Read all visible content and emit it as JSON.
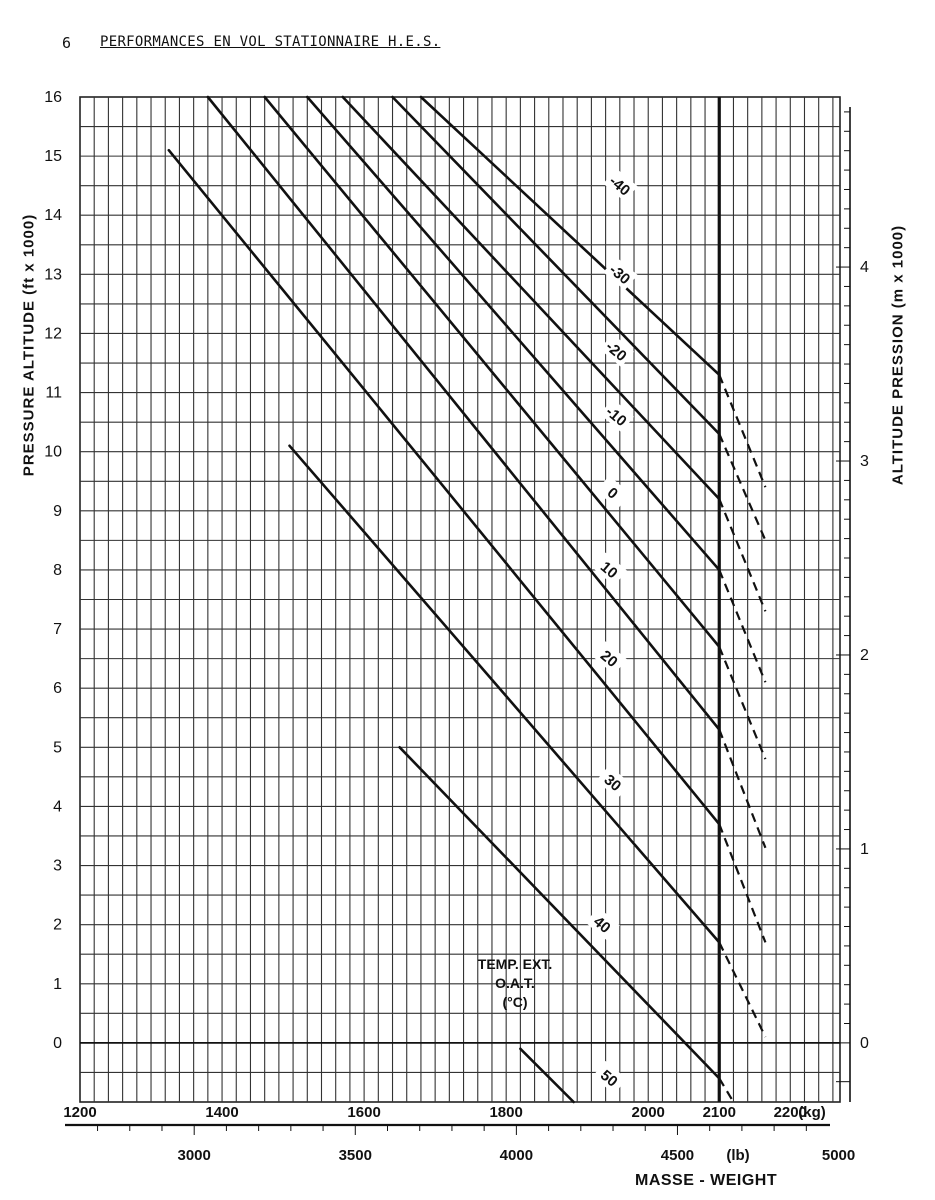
{
  "header": {
    "page_number": "6",
    "title": "PERFORMANCES EN VOL STATIONNAIRE H.E.S."
  },
  "legend": {
    "line1": "TEMP. EXT.",
    "line2": "O.A.T.",
    "line3": "(°C)"
  },
  "chart_data": {
    "type": "line",
    "xlabel": "MASSE - WEIGHT",
    "ylabel": "PRESSURE ALTITUDE (ft x 1000)",
    "ylabel_right": "ALTITUDE PRESSION (m x 1000)",
    "x_kg_unit": "(kg)",
    "x_lb_unit": "(lb)",
    "xlim_kg": [
      1200,
      2270
    ],
    "ylim_ft": [
      -1,
      16
    ],
    "grid": true,
    "x_kg_ticks": [
      "1200",
      "1400",
      "1600",
      "1800",
      "2000",
      "2100",
      "2200"
    ],
    "x_lb_ticks": [
      "3000",
      "3500",
      "4000",
      "4500",
      "5000"
    ],
    "y_ft_ticks": [
      "0",
      "1",
      "2",
      "3",
      "4",
      "5",
      "6",
      "7",
      "8",
      "9",
      "10",
      "11",
      "12",
      "13",
      "14",
      "15",
      "16"
    ],
    "y_m_ticks": [
      "0",
      "1",
      "2",
      "3",
      "4"
    ],
    "reference_line_kg": 2100,
    "series": [
      {
        "name": "-40",
        "label_at": [
          1960,
          14.5
        ],
        "points": [
          [
            1680,
            16
          ],
          [
            2100,
            11.3
          ]
        ],
        "dashed_to": [
          2165,
          9.4
        ]
      },
      {
        "name": "-30",
        "label_at": [
          1960,
          13.0
        ],
        "points": [
          [
            1640,
            16
          ],
          [
            2100,
            10.3
          ]
        ],
        "dashed_to": [
          2165,
          8.5
        ]
      },
      {
        "name": "-20",
        "label_at": [
          1955,
          11.7
        ],
        "points": [
          [
            1570,
            16
          ],
          [
            2100,
            9.2
          ]
        ],
        "dashed_to": [
          2165,
          7.3
        ]
      },
      {
        "name": "-10",
        "label_at": [
          1955,
          10.6
        ],
        "points": [
          [
            1520,
            16
          ],
          [
            2100,
            8.0
          ]
        ],
        "dashed_to": [
          2165,
          6.1
        ]
      },
      {
        "name": "0",
        "label_at": [
          1950,
          9.3
        ],
        "points": [
          [
            1460,
            16
          ],
          [
            2100,
            6.7
          ]
        ],
        "dashed_to": [
          2165,
          4.8
        ]
      },
      {
        "name": "10",
        "label_at": [
          1945,
          8.0
        ],
        "points": [
          [
            1380,
            16
          ],
          [
            2100,
            5.3
          ]
        ],
        "dashed_to": [
          2165,
          3.3
        ]
      },
      {
        "name": "20",
        "label_at": [
          1945,
          6.5
        ],
        "points": [
          [
            1325,
            15.1
          ],
          [
            2100,
            3.7
          ]
        ],
        "dashed_to": [
          2165,
          1.7
        ]
      },
      {
        "name": "30",
        "label_at": [
          1950,
          4.4
        ],
        "points": [
          [
            1495,
            10.1
          ],
          [
            2100,
            1.7
          ]
        ],
        "dashed_to": [
          2165,
          0.1
        ]
      },
      {
        "name": "40",
        "label_at": [
          1935,
          2.0
        ],
        "points": [
          [
            1650,
            5.0
          ],
          [
            2100,
            -0.6
          ]
        ],
        "dashed_to": [
          2120,
          -1.0
        ]
      },
      {
        "name": "50",
        "label_at": [
          1945,
          -0.6
        ],
        "points": [
          [
            1820,
            -0.1
          ],
          [
            1895,
            -1.0
          ]
        ]
      }
    ]
  }
}
